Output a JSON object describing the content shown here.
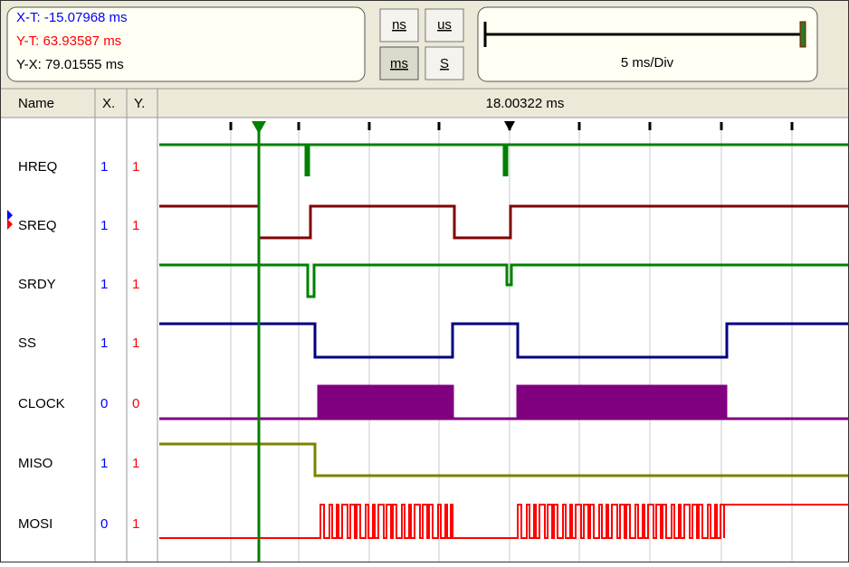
{
  "readout": {
    "x_t": "X-T: -15.07968 ms",
    "y_t": "Y-T: 63.93587 ms",
    "y_x": "Y-X: 79.01555 ms"
  },
  "units": [
    "ns",
    "us",
    "ms",
    "S"
  ],
  "scale": "5 ms/Div",
  "columns": [
    "Name",
    "X.",
    "Y."
  ],
  "time": "18.00322 ms",
  "signals": [
    {
      "name": "HREQ",
      "x": "1",
      "y": "1"
    },
    {
      "name": "SREQ",
      "x": "1",
      "y": "1"
    },
    {
      "name": "SRDY",
      "x": "1",
      "y": "1"
    },
    {
      "name": "SS",
      "x": "1",
      "y": "1"
    },
    {
      "name": "CLOCK",
      "x": "0",
      "y": "0"
    },
    {
      "name": "MISO",
      "x": "1",
      "y": "1"
    },
    {
      "name": "MOSI",
      "x": "0",
      "y": "1"
    }
  ]
}
